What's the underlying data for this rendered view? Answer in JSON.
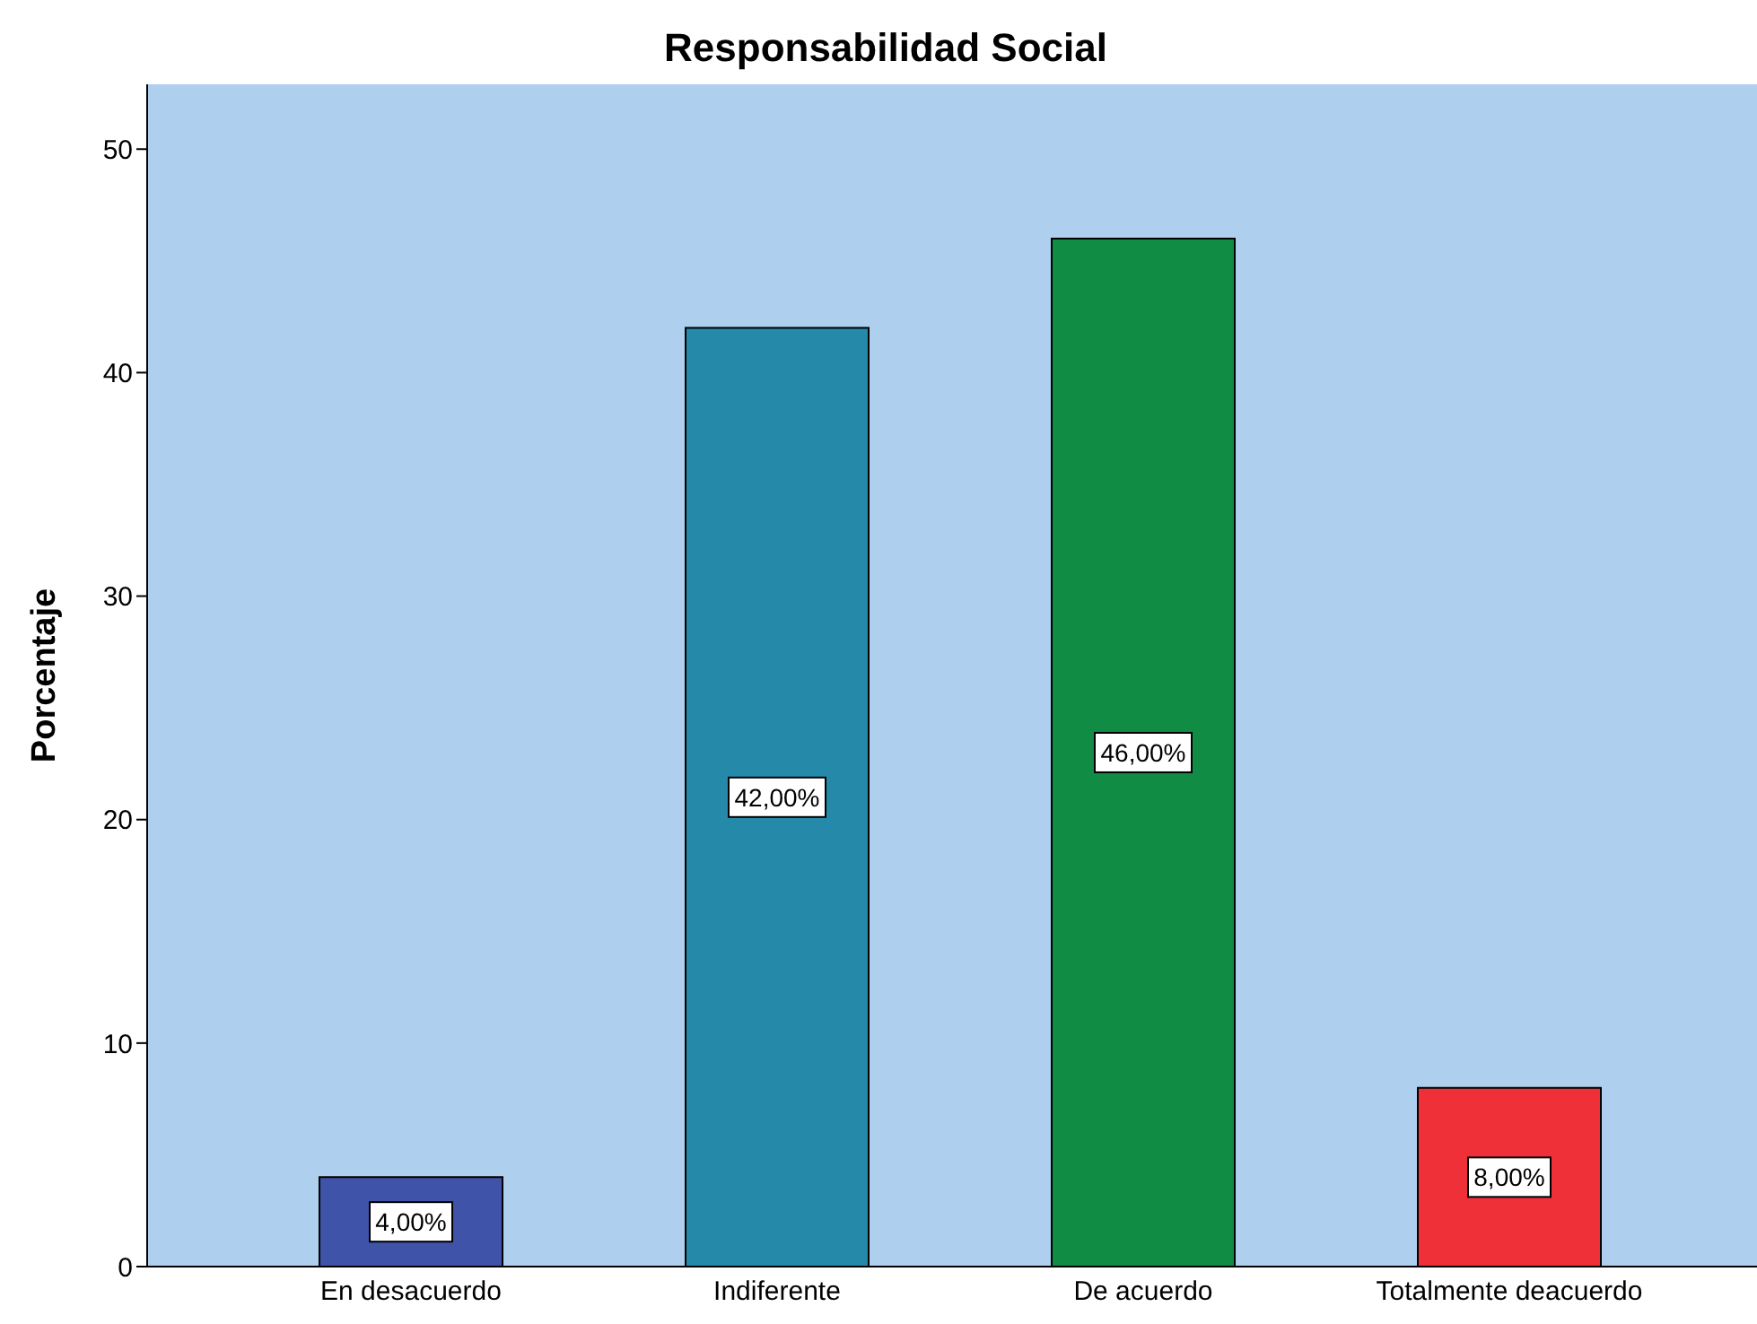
{
  "chart_data": {
    "type": "bar",
    "title": "Responsabilidad Social",
    "ylabel": "Porcentaje",
    "categories": [
      "En desacuerdo",
      "Indiferente",
      "De acuerdo",
      "Totalmente deacuerdo"
    ],
    "values": [
      4,
      42,
      46,
      8
    ],
    "colors": [
      "#3f53a8",
      "#2589aa",
      "#108c44",
      "#ef3038"
    ],
    "value_labels": [
      "4,00%",
      "42,00%",
      "46,00%",
      "8,00%"
    ],
    "ylim": [
      0,
      52.9
    ],
    "yticks": [
      0,
      10,
      20,
      30,
      40,
      50
    ],
    "grid": false
  }
}
